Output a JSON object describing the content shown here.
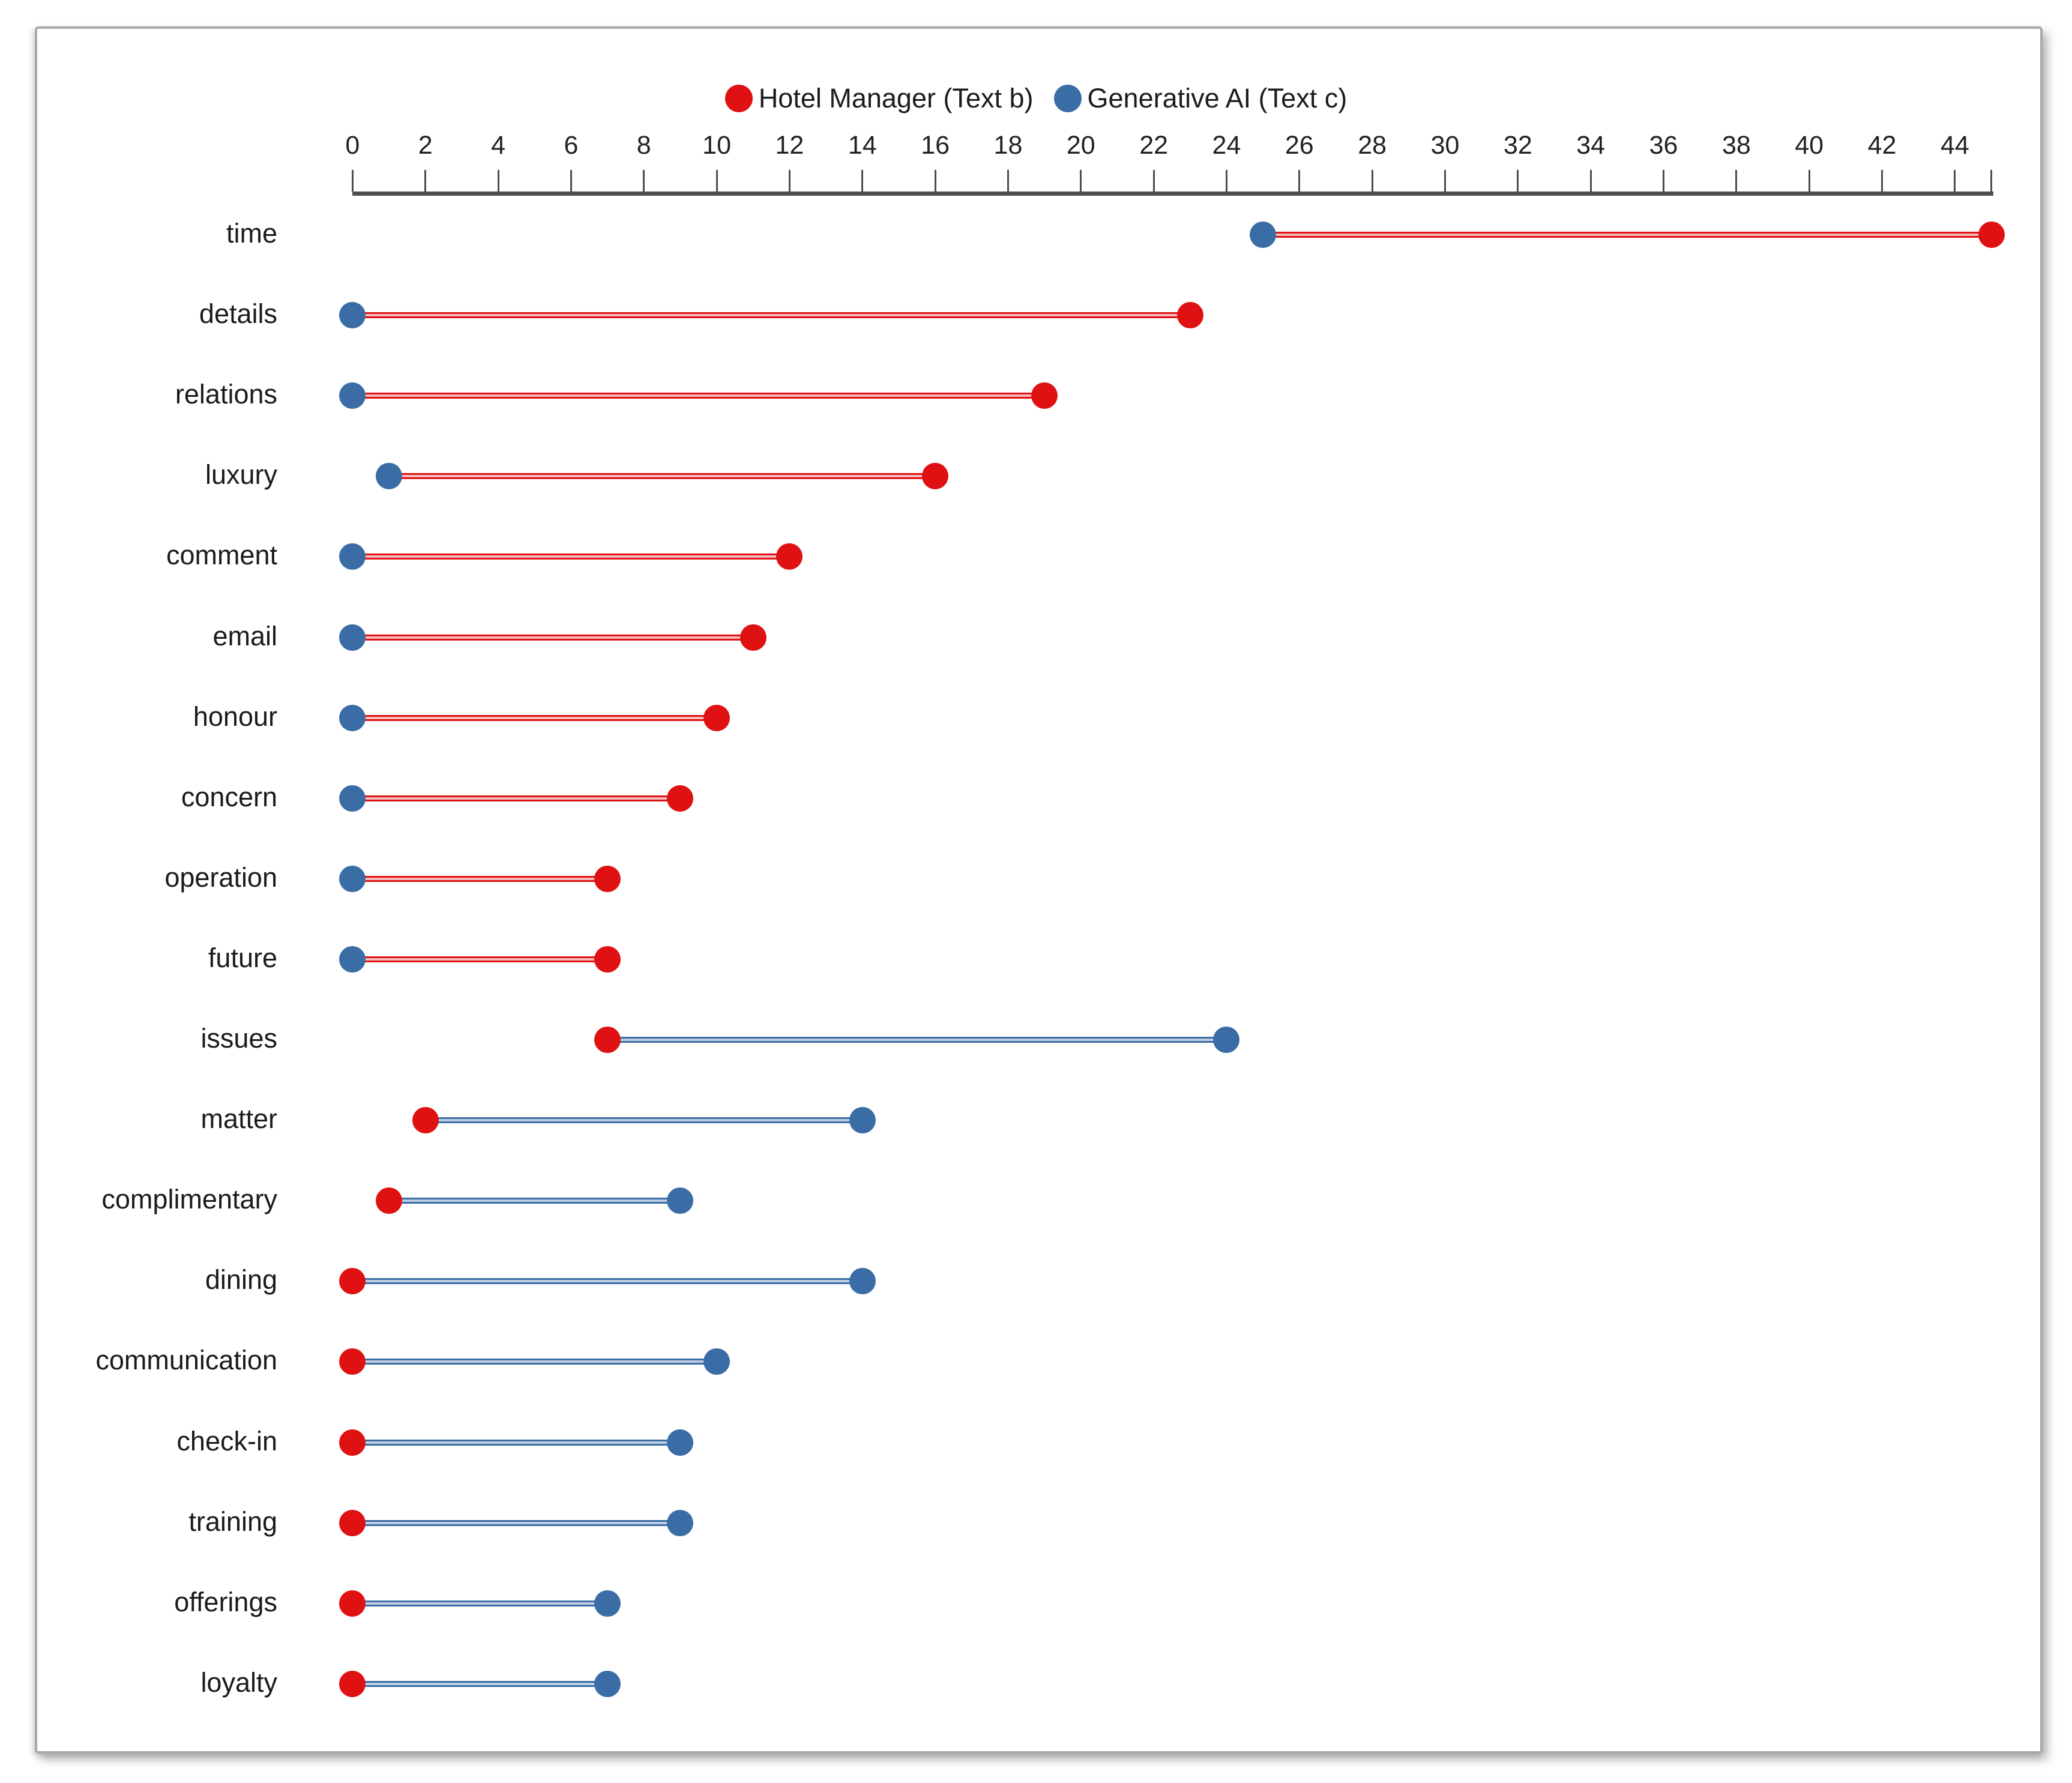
{
  "chart_data": {
    "type": "dumbbell",
    "title": "",
    "legend_position": "top",
    "grid": false,
    "colors": {
      "hotel_manager": "#df1112",
      "generative_ai": "#3a6ca5",
      "axis": "#4d4d4d",
      "text": "#1c1c1c"
    },
    "legend": [
      {
        "name": "Hotel Manager (Text b)",
        "series_key": "hotel_manager",
        "color": "#df1112"
      },
      {
        "name": "Generative AI (Text c)",
        "series_key": "generative_ai",
        "color": "#3a6ca5"
      }
    ],
    "x_axis": {
      "min": 0,
      "max": 45,
      "tick_step": 2,
      "tick_labels": [
        "0",
        "2",
        "4",
        "6",
        "8",
        "10",
        "12",
        "14",
        "16",
        "18",
        "20",
        "22",
        "24",
        "26",
        "28",
        "30",
        "32",
        "34",
        "36",
        "38",
        "40",
        "42",
        "44"
      ],
      "end_tick_value": 45
    },
    "categories": [
      "time",
      "details",
      "relations",
      "luxury",
      "comment",
      "email",
      "honour",
      "concern",
      "operation",
      "future",
      "issues",
      "matter",
      "complimentary",
      "dining",
      "communication",
      "check-in",
      "training",
      "offerings",
      "loyalty"
    ],
    "series": [
      {
        "name": "Hotel Manager (Text b)",
        "key": "hotel_manager",
        "color": "#df1112",
        "values": [
          45,
          23,
          19,
          16,
          12,
          11,
          10,
          9,
          7,
          7,
          7,
          2,
          1,
          0,
          0,
          0,
          0,
          0,
          0
        ]
      },
      {
        "name": "Generative AI (Text c)",
        "key": "generative_ai",
        "color": "#3a6ca5",
        "values": [
          25,
          0,
          0,
          1,
          0,
          0,
          0,
          0,
          0,
          0,
          24,
          14,
          9,
          14,
          10,
          9,
          9,
          7,
          7
        ]
      }
    ]
  }
}
